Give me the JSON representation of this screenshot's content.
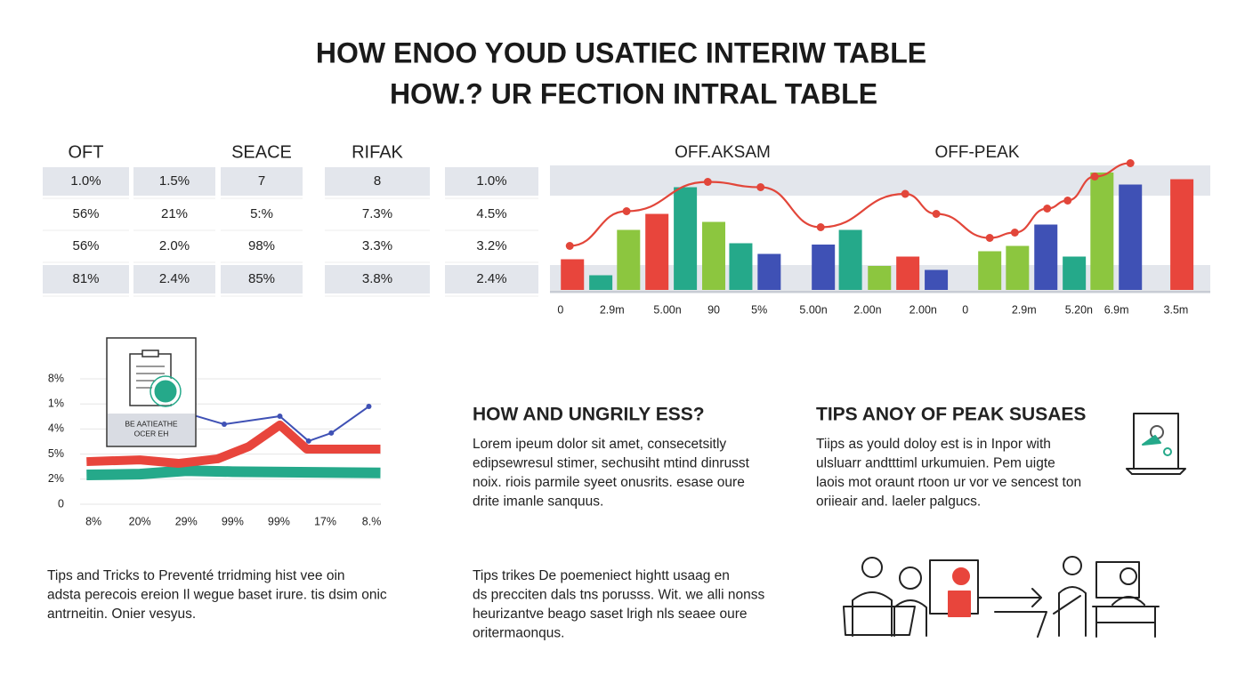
{
  "header": {
    "title_lines": [
      "HOW ENOO YOUD USATIEC INTERIW TABLE",
      "HOW.? UR FECTION INTRAL TABLE"
    ]
  },
  "table": {
    "headers": [
      "OFT",
      null,
      "SEACE",
      "RIFAK",
      null
    ],
    "rows": [
      [
        "1.0%",
        "1.5%",
        "7",
        "8",
        "1.0%"
      ],
      [
        "56%",
        "21%",
        "5:%",
        "7.3%",
        "4.5%"
      ],
      [
        "56%",
        "2.0%",
        "98%",
        "3.3%",
        "3.2%"
      ],
      [
        "81%",
        "2.4%",
        "85%",
        "3.8%",
        "2.4%"
      ]
    ]
  },
  "chart_data": [
    {
      "type": "bar",
      "headers": [
        "OFF.AKSAM",
        "OFF-PEAK"
      ],
      "header_colors": [
        "#e2463a",
        "#222222"
      ],
      "x": [
        3.4,
        7.7,
        11.9,
        16.2,
        20.5,
        24.8,
        28.9,
        33.2,
        41.4,
        45.5,
        49.9,
        54.2,
        58.5,
        66.6,
        70.8,
        75.1,
        79.4,
        83.6,
        87.9,
        95.7
      ],
      "values": [
        23,
        11,
        45,
        57,
        77,
        51,
        35,
        27,
        34,
        45,
        18,
        25,
        15,
        29,
        33,
        49,
        25,
        88,
        79,
        83
      ],
      "colors": [
        "#e8453c",
        "#25a98a",
        "#8cc63f",
        "#e8453c",
        "#25a98a",
        "#8cc63f",
        "#25a98a",
        "#3f51b5",
        "#3f51b5",
        "#25a98a",
        "#8cc63f",
        "#e8453c",
        "#3f51b5",
        "#8cc63f",
        "#8cc63f",
        "#3f51b5",
        "#25a98a",
        "#8cc63f",
        "#3f51b5",
        "#e8453c"
      ],
      "line": {
        "color": "#e2463a",
        "x": [
          3.0,
          11.6,
          23.9,
          31.9,
          41.0,
          53.8,
          58.5,
          66.6,
          70.4,
          75.3,
          78.4,
          82.5,
          87.9
        ],
        "values": [
          33,
          59,
          81,
          77,
          47,
          72,
          57,
          39,
          43,
          61,
          67,
          85,
          95
        ]
      },
      "xlim": [
        0,
        100
      ],
      "ylim": [
        0,
        100
      ],
      "xticks": [
        {
          "value": 1.6,
          "label": "0"
        },
        {
          "value": 9.4,
          "label": "2.9m"
        },
        {
          "value": 17.8,
          "label": "5.00n"
        },
        {
          "value": 24.8,
          "label": "90"
        },
        {
          "value": 31.7,
          "label": "5%"
        },
        {
          "value": 39.9,
          "label": "5.00n"
        },
        {
          "value": 48.1,
          "label": "2.00n"
        },
        {
          "value": 56.5,
          "label": "2.00n"
        },
        {
          "value": 62.9,
          "label": "0"
        },
        {
          "value": 71.8,
          "label": "2.9m"
        },
        {
          "value": 80.1,
          "label": "5.20n"
        },
        {
          "value": 85.8,
          "label": "6.9m"
        },
        {
          "value": 94.8,
          "label": "3.5m"
        }
      ]
    },
    {
      "type": "line",
      "xlim": [
        -0.29,
        6.2
      ],
      "ylim": [
        0,
        5
      ],
      "yticks": [
        {
          "value": 5,
          "label": "8%"
        },
        {
          "value": 4,
          "label": "1%"
        },
        {
          "value": 3,
          "label": "4%"
        },
        {
          "value": 2,
          "label": "5%"
        },
        {
          "value": 1,
          "label": "2%"
        },
        0
      ],
      "xticks": [
        {
          "value": 0,
          "label": "8%"
        },
        {
          "value": 1,
          "label": "20%"
        },
        {
          "value": 2,
          "label": "29%"
        },
        {
          "value": 3,
          "label": "99%"
        },
        {
          "value": 4,
          "label": "99%"
        },
        {
          "value": 5,
          "label": "17%"
        },
        {
          "value": 6,
          "label": "8.%"
        }
      ],
      "grid": true,
      "series": [
        {
          "color": "#25a98a",
          "width": 12,
          "x": [
            -0.15,
            1.0,
            2.0,
            3.0,
            6.19
          ],
          "values": [
            1.17,
            1.2,
            1.34,
            1.3,
            1.25
          ]
        },
        {
          "color": "#e8453c",
          "width": 10,
          "x": [
            -0.15,
            1.0,
            1.83,
            2.68,
            3.35,
            4.02,
            4.6,
            6.19
          ],
          "values": [
            1.7,
            1.77,
            1.63,
            1.81,
            2.3,
            3.16,
            2.2,
            2.2
          ]
        },
        {
          "color": "#3f51b5",
          "width": 2,
          "x": [
            2.1,
            2.82,
            4.02,
            4.64,
            5.13,
            5.94
          ],
          "values": [
            3.58,
            3.19,
            3.51,
            2.52,
            2.84,
            3.9
          ]
        }
      ],
      "icon_text": [
        "BE AATIEATHE",
        "OCER EH"
      ]
    }
  ],
  "sections": [
    {
      "title": "HOW AND UNGRILY ESS?",
      "lines": [
        "Lorem ipeum dolor sit amet, consecetsitly",
        "edipsewresul stimer, sechusiht mtind dinrusst",
        "noix. riois parmile syeet onusrits. esase oure",
        "drite imanle sanquus."
      ]
    },
    {
      "title": "TIPS ANOY OF PEAK SUSAES",
      "lines": [
        "Tiips as yould doloy est is in Inpor with",
        "ulsluarr andtttiml urkumuien. Pem uigte",
        "laois mot oraunt rtoon ur vor ve sencest ton",
        "oriieair and. laeler palgucs."
      ]
    },
    {
      "lines": [
        "Tips and Tricks to Preventé trridming hist vee oin",
        "adsta perecois ereion Il wegue baset irure. tis dsim onic",
        "antrneitin. Onier vesyus."
      ]
    },
    {
      "lines": [
        "Tips trikes De poemeniect hightt usaag en",
        "ds precciten dals tns porusss. Wit. we alli nonss",
        "heurizantve beago saset lrigh nls seaee oure",
        "oritermaonqus."
      ]
    }
  ]
}
